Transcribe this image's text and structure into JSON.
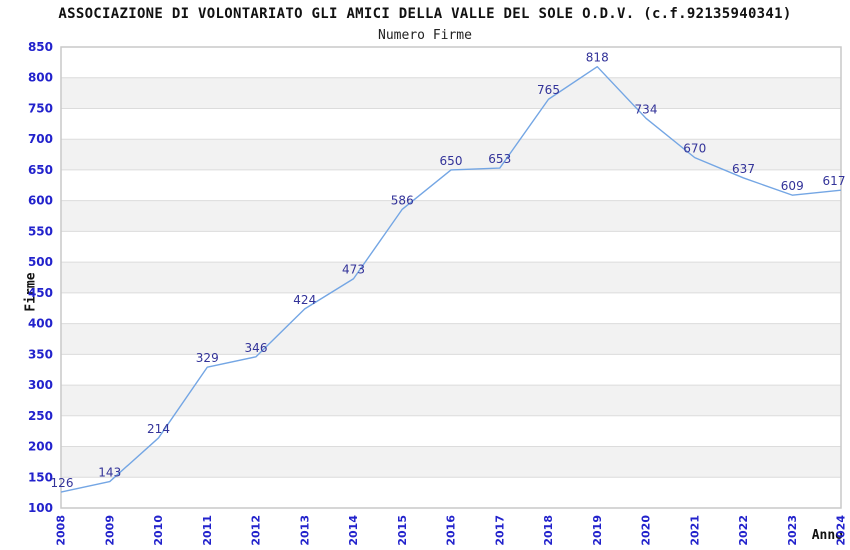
{
  "header": {
    "title": "ASSOCIAZIONE DI VOLONTARIATO GLI AMICI DELLA VALLE DEL SOLE O.D.V. (c.f.92135940341)",
    "subtitle": "Numero Firme"
  },
  "chart_data": {
    "type": "line",
    "title": "ASSOCIAZIONE DI VOLONTARIATO GLI AMICI DELLA VALLE DEL SOLE O.D.V. (c.f.92135940341)",
    "subtitle": "Numero Firme",
    "categories": [
      "2008",
      "2009",
      "2010",
      "2011",
      "2012",
      "2013",
      "2014",
      "2015",
      "2016",
      "2017",
      "2018",
      "2019",
      "2020",
      "2021",
      "2022",
      "2023",
      "2024"
    ],
    "values": [
      126,
      143,
      214,
      329,
      346,
      424,
      473,
      586,
      650,
      653,
      765,
      818,
      734,
      670,
      637,
      609,
      617
    ],
    "xlabel": "Anno",
    "ylabel": "Firme",
    "ylim": [
      100,
      850
    ],
    "ytick_step": 50,
    "grid": "horizontal-bands",
    "legend": "none",
    "colors": {
      "line": "#74A6E4",
      "data_label": "#333399",
      "tick_label": "#2222CC",
      "band_fill": "#F2F2F2",
      "gridline": "#DCDCDC",
      "plot_border": "#C9C9C9",
      "title_text": "#111111"
    }
  }
}
